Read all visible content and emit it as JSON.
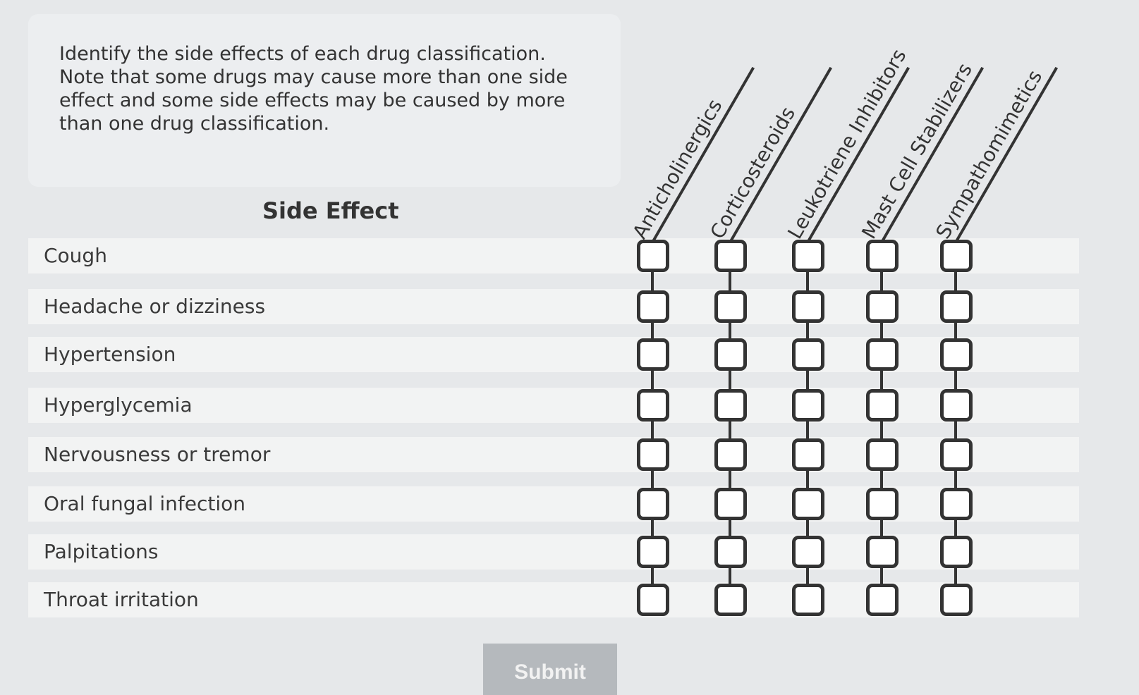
{
  "instructions": "Identify the side effects of each drug classification. Note that some drugs may cause more than one side effect and some side effects may be caused by more than one drug classification.",
  "side_effect_header": "Side Effect",
  "side_effects": [
    "Cough",
    "Headache or dizziness",
    "Hypertension",
    "Hyperglycemia",
    "Nervousness or tremor",
    "Oral fungal infection",
    "Palpitations",
    "Throat irritation"
  ],
  "drug_classes": [
    "Anticholinergics",
    "Corticosteroids",
    "Leukotriene Inhibitors",
    "Mast Cell Stabilizers",
    "Sympathomimetics"
  ],
  "submit_label": "Submit"
}
